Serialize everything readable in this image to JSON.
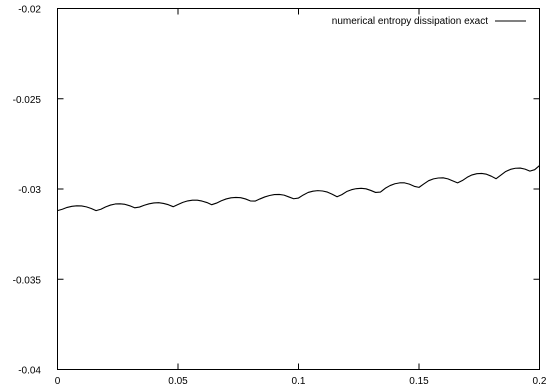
{
  "chart_data": {
    "type": "line",
    "title": "",
    "xlabel": "",
    "ylabel": "",
    "xlim": [
      0,
      0.2
    ],
    "ylim": [
      -0.04,
      -0.02
    ],
    "xticks": [
      0,
      0.05,
      0.1,
      0.15,
      0.2
    ],
    "xtick_labels": [
      "0",
      "0.05",
      "0.1",
      "0.15",
      "0.2"
    ],
    "yticks": [
      -0.04,
      -0.035,
      -0.03,
      -0.025,
      -0.02
    ],
    "ytick_labels": [
      "-0.04",
      "-0.035",
      "-0.03",
      "-0.025",
      "-0.02"
    ],
    "grid": false,
    "legend": "top-right",
    "series": [
      {
        "name": "numerical entropy dissipation exact",
        "color": "#000000",
        "x": [
          0,
          0.002,
          0.004,
          0.006,
          0.008,
          0.01,
          0.012,
          0.014,
          0.016,
          0.018,
          0.02,
          0.022,
          0.024,
          0.026,
          0.028,
          0.03,
          0.032,
          0.034,
          0.036,
          0.038,
          0.04,
          0.042,
          0.044,
          0.046,
          0.048,
          0.05,
          0.052,
          0.054,
          0.056,
          0.058,
          0.06,
          0.062,
          0.064,
          0.066,
          0.068,
          0.07,
          0.072,
          0.074,
          0.076,
          0.078,
          0.08,
          0.082,
          0.084,
          0.086,
          0.088,
          0.09,
          0.092,
          0.094,
          0.096,
          0.098,
          0.1,
          0.102,
          0.104,
          0.106,
          0.108,
          0.11,
          0.112,
          0.114,
          0.116,
          0.118,
          0.12,
          0.122,
          0.124,
          0.126,
          0.128,
          0.13,
          0.132,
          0.134,
          0.136,
          0.138,
          0.14,
          0.142,
          0.144,
          0.146,
          0.148,
          0.15,
          0.152,
          0.154,
          0.156,
          0.158,
          0.16,
          0.162,
          0.164,
          0.166,
          0.168,
          0.17,
          0.172,
          0.174,
          0.176,
          0.178,
          0.18,
          0.182,
          0.184,
          0.186,
          0.188,
          0.19,
          0.192,
          0.194,
          0.196,
          0.198,
          0.2
        ],
        "values": [
          -0.0312,
          -0.03112,
          -0.03102,
          -0.03096,
          -0.03093,
          -0.03094,
          -0.03099,
          -0.03108,
          -0.0312,
          -0.03112,
          -0.03099,
          -0.03089,
          -0.03083,
          -0.03082,
          -0.03085,
          -0.03093,
          -0.03104,
          -0.031,
          -0.0309,
          -0.03082,
          -0.03077,
          -0.03076,
          -0.0308,
          -0.03087,
          -0.03098,
          -0.03086,
          -0.03074,
          -0.03066,
          -0.03062,
          -0.03062,
          -0.03067,
          -0.03075,
          -0.03087,
          -0.03078,
          -0.03065,
          -0.03055,
          -0.03049,
          -0.03047,
          -0.03048,
          -0.03055,
          -0.03066,
          -0.03067,
          -0.03055,
          -0.03044,
          -0.03036,
          -0.03031,
          -0.0303,
          -0.03034,
          -0.03044,
          -0.03054,
          -0.0305,
          -0.03033,
          -0.03019,
          -0.03012,
          -0.03009,
          -0.03011,
          -0.03017,
          -0.03029,
          -0.03043,
          -0.03031,
          -0.03014,
          -0.03004,
          -0.02998,
          -0.02996,
          -0.02999,
          -0.03008,
          -0.03019,
          -0.03017,
          -0.02996,
          -0.02981,
          -0.02971,
          -0.02966,
          -0.02966,
          -0.02973,
          -0.02985,
          -0.02991,
          -0.02972,
          -0.02954,
          -0.02944,
          -0.02939,
          -0.02938,
          -0.02944,
          -0.02955,
          -0.02966,
          -0.02953,
          -0.02935,
          -0.02922,
          -0.02915,
          -0.02914,
          -0.02918,
          -0.02929,
          -0.02943,
          -0.02923,
          -0.02903,
          -0.02891,
          -0.02885,
          -0.02884,
          -0.0289,
          -0.02901,
          -0.02893,
          -0.0287
        ]
      }
    ]
  }
}
